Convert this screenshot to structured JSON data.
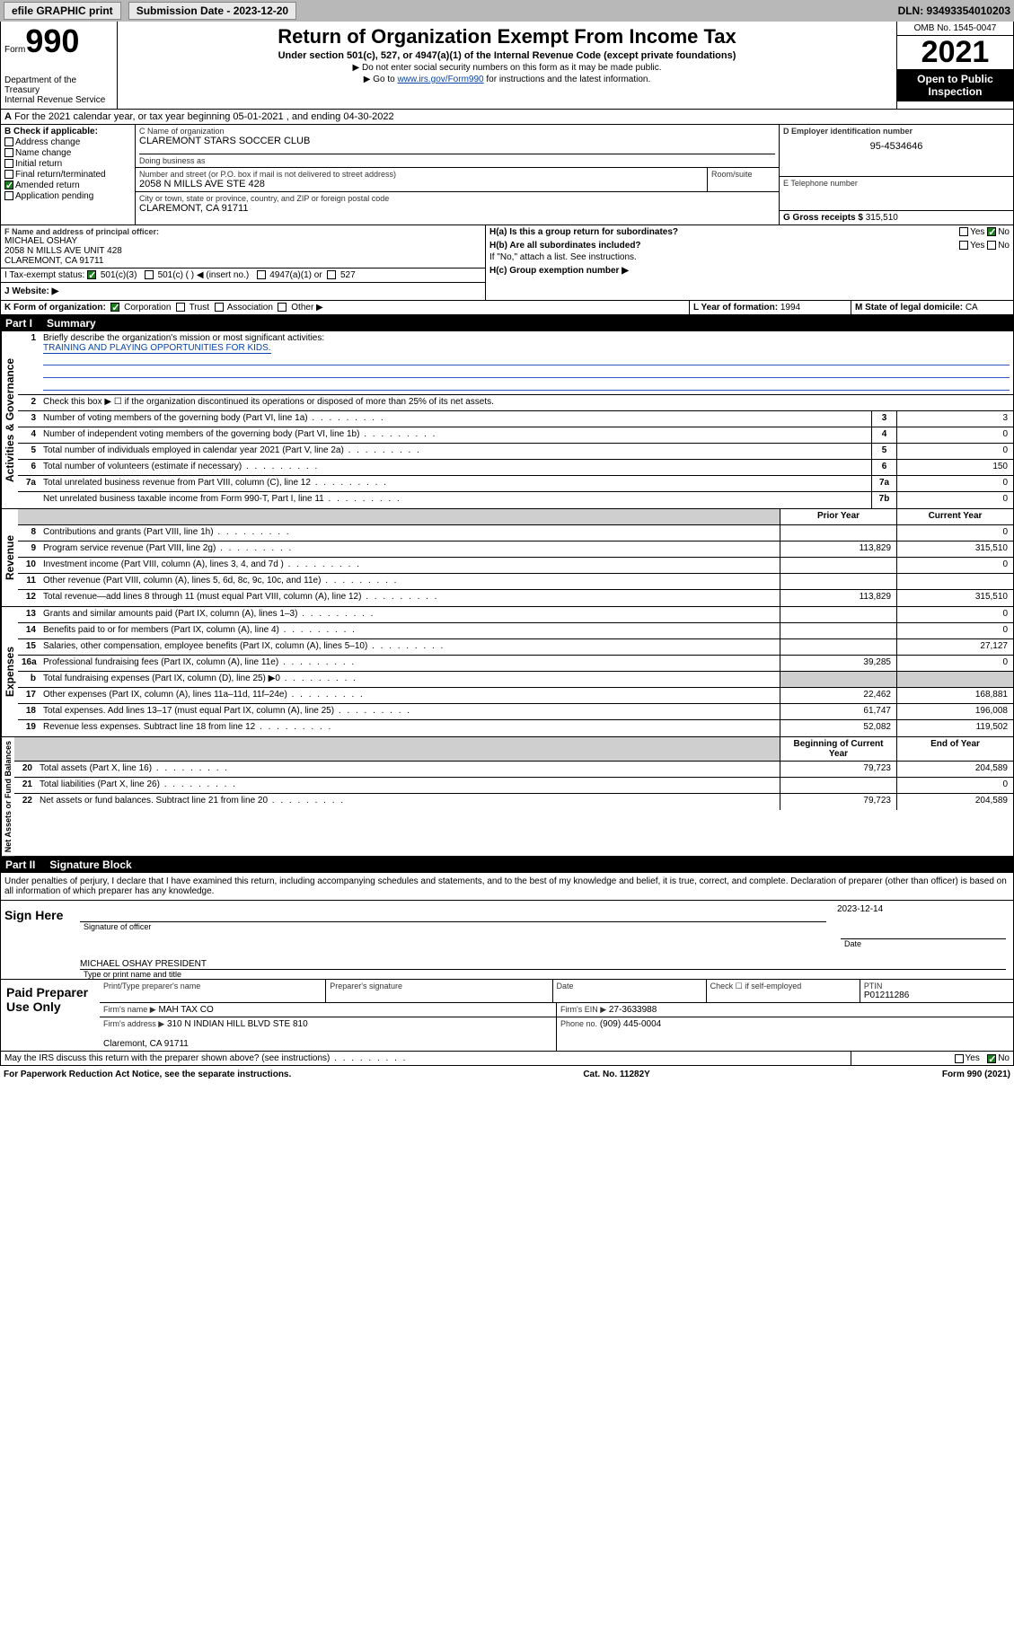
{
  "topbar": {
    "efile": "efile GRAPHIC print",
    "subdate_lbl": "Submission Date - 2023-12-20",
    "dln": "DLN: 93493354010203"
  },
  "hdr": {
    "form_word": "Form",
    "form_no": "990",
    "dept": "Department of the Treasury\nInternal Revenue Service",
    "title": "Return of Organization Exempt From Income Tax",
    "sub": "Under section 501(c), 527, or 4947(a)(1) of the Internal Revenue Code (except private foundations)",
    "note1": "▶ Do not enter social security numbers on this form as it may be made public.",
    "note2_pre": "▶ Go to ",
    "note2_link": "www.irs.gov/Form990",
    "note2_post": " for instructions and the latest information.",
    "omb": "OMB No. 1545-0047",
    "year": "2021",
    "open": "Open to Public Inspection"
  },
  "a": {
    "text": "For the 2021 calendar year, or tax year beginning 05-01-2021   , and ending 04-30-2022"
  },
  "b": {
    "title": "B Check if applicable:",
    "items": [
      "Address change",
      "Name change",
      "Initial return",
      "Final return/terminated",
      "Amended return",
      "Application pending"
    ],
    "checked": [
      false,
      false,
      false,
      false,
      true,
      false
    ]
  },
  "c": {
    "name_lbl": "C Name of organization",
    "name": "CLAREMONT STARS SOCCER CLUB",
    "dba_lbl": "Doing business as",
    "dba": "",
    "addr_lbl": "Number and street (or P.O. box if mail is not delivered to street address)",
    "room_lbl": "Room/suite",
    "addr": "2058 N MILLS AVE STE 428",
    "city_lbl": "City or town, state or province, country, and ZIP or foreign postal code",
    "city": "CLAREMONT, CA  91711"
  },
  "d": {
    "lbl": "D Employer identification number",
    "val": "95-4534646"
  },
  "e": {
    "lbl": "E Telephone number",
    "val": ""
  },
  "g": {
    "lbl": "G Gross receipts $",
    "val": "315,510"
  },
  "f": {
    "lbl": "F  Name and address of principal officer:",
    "name": "MICHAEL OSHAY",
    "addr": "2058 N MILLS AVE UNIT 428\nCLAREMONT, CA  91711"
  },
  "h": {
    "a_lbl": "H(a)  Is this a group return for subordinates?",
    "a_yes": "Yes",
    "a_no": "No",
    "a_checked": "No",
    "b_lbl": "H(b)  Are all subordinates included?",
    "b_note": "If \"No,\" attach a list. See instructions.",
    "c_lbl": "H(c)  Group exemption number ▶"
  },
  "i": {
    "lbl": "I   Tax-exempt status:",
    "c3": "501(c)(3)",
    "c": "501(c) (  ) ◀ (insert no.)",
    "a1": "4947(a)(1) or",
    "s527": "527",
    "checked": "501(c)(3)"
  },
  "j": {
    "lbl": "J   Website: ▶",
    "val": ""
  },
  "k": {
    "lbl": "K Form of organization:",
    "opts": [
      "Corporation",
      "Trust",
      "Association",
      "Other ▶"
    ],
    "checked": "Corporation"
  },
  "l": {
    "lbl": "L Year of formation: ",
    "val": "1994"
  },
  "m": {
    "lbl": "M State of legal domicile: ",
    "val": "CA"
  },
  "p1": {
    "label": "Part I",
    "title": "Summary"
  },
  "s1": {
    "gov_lbl": "Activities & Governance",
    "q1": "Briefly describe the organization's mission or most significant activities:",
    "mission": "TRAINING AND PLAYING OPPORTUNITIES FOR KIDS.",
    "q2": "Check this box ▶ ☐  if the organization discontinued its operations or disposed of more than 25% of its net assets.",
    "rows": [
      {
        "n": "3",
        "d": "Number of voting members of the governing body (Part VI, line 1a)",
        "box": "3",
        "v": "3"
      },
      {
        "n": "4",
        "d": "Number of independent voting members of the governing body (Part VI, line 1b)",
        "box": "4",
        "v": "0"
      },
      {
        "n": "5",
        "d": "Total number of individuals employed in calendar year 2021 (Part V, line 2a)",
        "box": "5",
        "v": "0"
      },
      {
        "n": "6",
        "d": "Total number of volunteers (estimate if necessary)",
        "box": "6",
        "v": "150"
      },
      {
        "n": "7a",
        "d": "Total unrelated business revenue from Part VIII, column (C), line 12",
        "box": "7a",
        "v": "0"
      },
      {
        "n": "",
        "d": "Net unrelated business taxable income from Form 990-T, Part I, line 11",
        "box": "7b",
        "v": "0"
      }
    ]
  },
  "cols": {
    "py": "Prior Year",
    "cy": "Current Year"
  },
  "rev": {
    "lbl": "Revenue",
    "rows": [
      {
        "n": "8",
        "d": "Contributions and grants (Part VIII, line 1h)",
        "py": "",
        "cy": "0"
      },
      {
        "n": "9",
        "d": "Program service revenue (Part VIII, line 2g)",
        "py": "113,829",
        "cy": "315,510"
      },
      {
        "n": "10",
        "d": "Investment income (Part VIII, column (A), lines 3, 4, and 7d )",
        "py": "",
        "cy": "0"
      },
      {
        "n": "11",
        "d": "Other revenue (Part VIII, column (A), lines 5, 6d, 8c, 9c, 10c, and 11e)",
        "py": "",
        "cy": ""
      },
      {
        "n": "12",
        "d": "Total revenue—add lines 8 through 11 (must equal Part VIII, column (A), line 12)",
        "py": "113,829",
        "cy": "315,510"
      }
    ]
  },
  "exp": {
    "lbl": "Expenses",
    "rows": [
      {
        "n": "13",
        "d": "Grants and similar amounts paid (Part IX, column (A), lines 1–3)",
        "py": "",
        "cy": "0"
      },
      {
        "n": "14",
        "d": "Benefits paid to or for members (Part IX, column (A), line 4)",
        "py": "",
        "cy": "0"
      },
      {
        "n": "15",
        "d": "Salaries, other compensation, employee benefits (Part IX, column (A), lines 5–10)",
        "py": "",
        "cy": "27,127"
      },
      {
        "n": "16a",
        "d": "Professional fundraising fees (Part IX, column (A), line 11e)",
        "py": "39,285",
        "cy": "0"
      },
      {
        "n": "b",
        "d": "Total fundraising expenses (Part IX, column (D), line 25) ▶0",
        "py": "shade",
        "cy": "shade"
      },
      {
        "n": "17",
        "d": "Other expenses (Part IX, column (A), lines 11a–11d, 11f–24e)",
        "py": "22,462",
        "cy": "168,881"
      },
      {
        "n": "18",
        "d": "Total expenses. Add lines 13–17 (must equal Part IX, column (A), line 25)",
        "py": "61,747",
        "cy": "196,008"
      },
      {
        "n": "19",
        "d": "Revenue less expenses. Subtract line 18 from line 12",
        "py": "52,082",
        "cy": "119,502"
      }
    ]
  },
  "na": {
    "lbl": "Net Assets or Fund Balances",
    "hpy": "Beginning of Current Year",
    "hcy": "End of Year",
    "rows": [
      {
        "n": "20",
        "d": "Total assets (Part X, line 16)",
        "py": "79,723",
        "cy": "204,589"
      },
      {
        "n": "21",
        "d": "Total liabilities (Part X, line 26)",
        "py": "",
        "cy": "0"
      },
      {
        "n": "22",
        "d": "Net assets or fund balances. Subtract line 21 from line 20",
        "py": "79,723",
        "cy": "204,589"
      }
    ]
  },
  "p2": {
    "label": "Part II",
    "title": "Signature Block"
  },
  "sig": {
    "decl": "Under penalties of perjury, I declare that I have examined this return, including accompanying schedules and statements, and to the best of my knowledge and belief, it is true, correct, and complete. Declaration of preparer (other than officer) is based on all information of which preparer has any knowledge.",
    "here": "Sign Here",
    "sig_lbl": "Signature of officer",
    "date_lbl": "Date",
    "date": "2023-12-14",
    "name": "MICHAEL OSHAY PRESIDENT",
    "name_lbl": "Type or print name and title"
  },
  "prep": {
    "title": "Paid Preparer Use Only",
    "h1": "Print/Type preparer's name",
    "h2": "Preparer's signature",
    "h3": "Date",
    "h4": "Check ☐ if self-employed",
    "h5": "PTIN",
    "ptin": "P01211286",
    "firm_lbl": "Firm's name   ▶",
    "firm": "MAH TAX CO",
    "ein_lbl": "Firm's EIN ▶",
    "ein": "27-3633988",
    "addr_lbl": "Firm's address ▶",
    "addr": "310 N INDIAN HILL BLVD STE 810\n\nClaremont, CA  91711",
    "ph_lbl": "Phone no.",
    "ph": "(909) 445-0004"
  },
  "discuss": {
    "q": "May the IRS discuss this return with the preparer shown above? (see instructions)",
    "yes": "Yes",
    "no": "No",
    "checked": "No"
  },
  "foot": {
    "l": "For Paperwork Reduction Act Notice, see the separate instructions.",
    "c": "Cat. No. 11282Y",
    "r": "Form 990 (2021)"
  }
}
